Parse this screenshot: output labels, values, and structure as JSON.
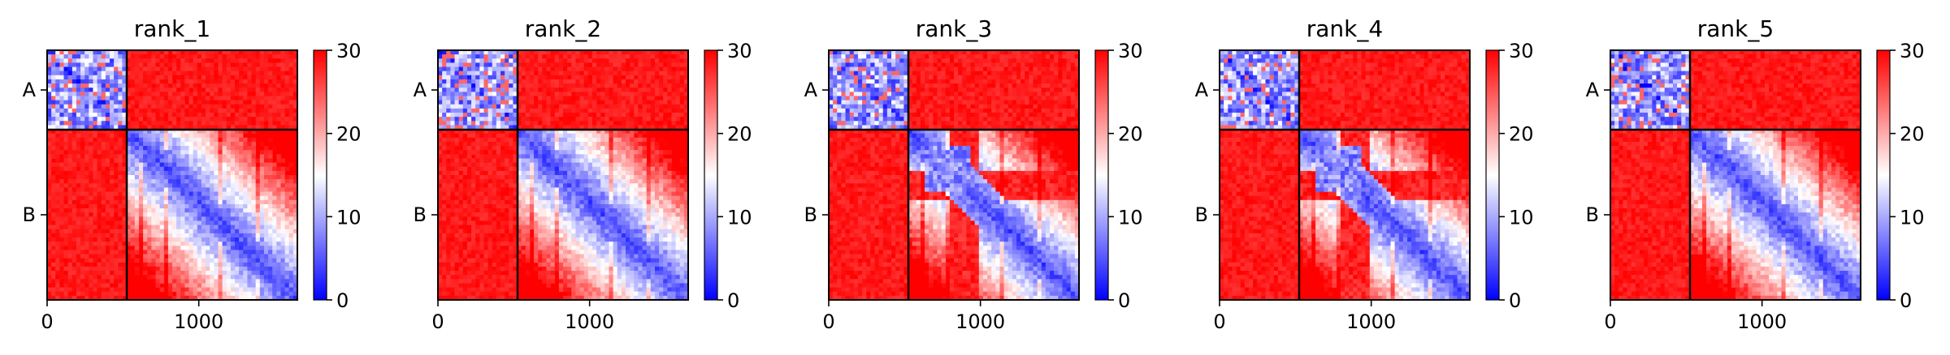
{
  "chart_data": [
    {
      "type": "heatmap",
      "title": "rank_1",
      "chain_labels": [
        "A",
        "B"
      ],
      "chain_boundary": 525,
      "x_range": [
        0,
        1650
      ],
      "x_ticks": [
        0,
        1000
      ],
      "colorbar": {
        "range": [
          0,
          30
        ],
        "ticks": [
          0,
          10,
          20,
          30
        ],
        "colormap": "bwr"
      },
      "variant": "a"
    },
    {
      "type": "heatmap",
      "title": "rank_2",
      "chain_labels": [
        "A",
        "B"
      ],
      "chain_boundary": 525,
      "x_range": [
        0,
        1650
      ],
      "x_ticks": [
        0,
        1000
      ],
      "colorbar": {
        "range": [
          0,
          30
        ],
        "ticks": [
          0,
          10,
          20,
          30
        ],
        "colormap": "bwr"
      },
      "variant": "a"
    },
    {
      "type": "heatmap",
      "title": "rank_3",
      "chain_labels": [
        "A",
        "B"
      ],
      "chain_boundary": 525,
      "x_range": [
        0,
        1650
      ],
      "x_ticks": [
        0,
        1000
      ],
      "colorbar": {
        "range": [
          0,
          30
        ],
        "ticks": [
          0,
          10,
          20,
          30
        ],
        "colormap": "bwr"
      },
      "variant": "b"
    },
    {
      "type": "heatmap",
      "title": "rank_4",
      "chain_labels": [
        "A",
        "B"
      ],
      "chain_boundary": 525,
      "x_range": [
        0,
        1650
      ],
      "x_ticks": [
        0,
        1000
      ],
      "colorbar": {
        "range": [
          0,
          30
        ],
        "ticks": [
          0,
          10,
          20,
          30
        ],
        "colormap": "bwr"
      },
      "variant": "b"
    },
    {
      "type": "heatmap",
      "title": "rank_5",
      "chain_labels": [
        "A",
        "B"
      ],
      "chain_boundary": 525,
      "x_range": [
        0,
        1650
      ],
      "x_ticks": [
        0,
        1000
      ],
      "colorbar": {
        "range": [
          0,
          30
        ],
        "ticks": [
          0,
          10,
          20,
          30
        ],
        "colormap": "bwr"
      },
      "variant": "a"
    }
  ]
}
